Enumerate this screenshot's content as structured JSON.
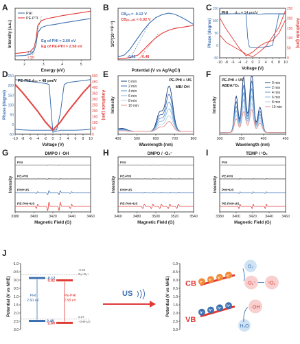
{
  "colors": {
    "blue": "#3b6fb0",
    "red": "#e03a36",
    "gray": "#555555",
    "lightblue": "#7fb3dd"
  },
  "panels": [
    {
      "letter": "A",
      "type": "line",
      "xlabel": "Energy (eV)",
      "ylabel": "Intensity (a.u.)",
      "xticks": [
        "2",
        "3",
        "4",
        "5"
      ],
      "xlim": [
        1.5,
        5.5
      ],
      "ylim": [
        0,
        1
      ],
      "legend": [
        "PHI",
        "PE-PTI"
      ],
      "annotations": [
        "Eɡ of PHI = 2.60 eV",
        "Eɡ of PE-PHI = 2.58 eV",
        "2.60",
        "2.58"
      ],
      "series": [
        {
          "name": "PHI",
          "color": "blue",
          "x": [
            1.5,
            2.0,
            2.3,
            2.5,
            2.6,
            2.7,
            2.9,
            3.2,
            3.6,
            4.0,
            4.5,
            5.0,
            5.5
          ],
          "y": [
            0.08,
            0.09,
            0.11,
            0.18,
            0.3,
            0.55,
            0.66,
            0.7,
            0.72,
            0.75,
            0.78,
            0.81,
            0.84
          ]
        },
        {
          "name": "PE-PTI",
          "color": "red",
          "x": [
            1.5,
            2.0,
            2.3,
            2.5,
            2.6,
            2.7,
            2.9,
            3.2,
            3.6,
            4.0,
            4.5,
            5.0,
            5.5
          ],
          "y": [
            0.13,
            0.15,
            0.17,
            0.25,
            0.4,
            0.7,
            0.8,
            0.84,
            0.87,
            0.9,
            0.93,
            0.96,
            0.99
          ]
        }
      ]
    },
    {
      "letter": "B",
      "type": "line",
      "xlabel": "Potential (V vs Ag/AgCl)",
      "ylabel": "1/C²(10⁻¹²F⁻²)",
      "xticks": [],
      "xlim": [
        -0.8,
        0.4
      ],
      "ylim": [
        0,
        1
      ],
      "annotations": [
        "CBₚₕᵢ = -0.12 V",
        "CBₚₑ₋ₚₕᵢ = 0.02 V",
        "-0.62",
        "-0.48"
      ],
      "series": [
        {
          "name": "PHI",
          "color": "blue",
          "x": [
            -0.8,
            -0.7,
            -0.62,
            -0.5,
            -0.4,
            -0.3,
            -0.2,
            -0.1,
            0.0,
            0.1,
            0.2,
            0.3,
            0.4
          ],
          "y": [
            0.06,
            0.1,
            0.2,
            0.42,
            0.6,
            0.75,
            0.86,
            0.92,
            0.95,
            0.93,
            0.87,
            0.8,
            0.72
          ]
        },
        {
          "name": "PE-PHI",
          "color": "red",
          "x": [
            -0.8,
            -0.7,
            -0.6,
            -0.48,
            -0.4,
            -0.3,
            -0.2,
            -0.1,
            0.0,
            0.1,
            0.2,
            0.3,
            0.4
          ],
          "y": [
            0.02,
            0.03,
            0.05,
            0.1,
            0.2,
            0.33,
            0.45,
            0.54,
            0.6,
            0.64,
            0.66,
            0.68,
            0.7
          ]
        }
      ]
    },
    {
      "letter": "C",
      "type": "line",
      "xlabel": "Voltage (V)",
      "ylabel": "Phase (degree)",
      "y2label": "Amplitude (pm)",
      "xticks": [
        "-10",
        "-8",
        "-6",
        "-4",
        "-2",
        "0",
        "2",
        "4",
        "6",
        "8",
        "10"
      ],
      "xlim": [
        -10,
        10
      ],
      "yticks": [
        "-50",
        "0",
        "50",
        "100",
        "150"
      ],
      "y2ticks": [
        "0",
        "50",
        "100",
        "150",
        "200",
        "250"
      ],
      "annotations": [
        "PHI",
        "d₃₃ = 14 pm/V"
      ],
      "series": [
        {
          "name": "Phase",
          "color": "blue",
          "x": [
            -10,
            -6,
            -3,
            -2,
            -1.5,
            -1,
            0,
            2,
            4,
            6,
            8,
            10
          ],
          "y": [
            150,
            150,
            150,
            150,
            40,
            0,
            -5,
            -3,
            0,
            5,
            148,
            150
          ]
        },
        {
          "name": "Phase return",
          "color": "blue",
          "x": [
            -10,
            -8,
            -6,
            -4,
            -2,
            0,
            0.5,
            1,
            2,
            4,
            6,
            10
          ],
          "y": [
            148,
            149,
            150,
            150,
            150,
            150,
            150,
            150,
            148,
            150,
            150,
            150
          ]
        },
        {
          "name": "Amplitude",
          "color": "red",
          "x": [
            -10,
            -8,
            -6,
            -4,
            -2,
            0,
            2,
            4,
            6,
            8,
            10
          ],
          "y": [
            120,
            80,
            60,
            40,
            20,
            5,
            30,
            60,
            110,
            160,
            250
          ]
        },
        {
          "name": "Amplitude return",
          "color": "red",
          "x": [
            -10,
            -8,
            -6,
            -4,
            -2,
            0,
            2,
            4,
            6,
            8,
            10
          ],
          "y": [
            210,
            150,
            100,
            50,
            10,
            30,
            60,
            80,
            90,
            130,
            200
          ]
        }
      ]
    },
    {
      "letter": "D",
      "type": "line",
      "xlabel": "Voltage (V)",
      "ylabel": "Phase (degree)",
      "y2label": "Amplitude (pm)",
      "xticks": [
        "-10",
        "-8",
        "-6",
        "-4",
        "-2",
        "0",
        "2",
        "4",
        "6",
        "8",
        "10"
      ],
      "xlim": [
        -10,
        10
      ],
      "yticks": [
        "-50",
        "0",
        "50",
        "100",
        "150",
        "200",
        "250"
      ],
      "y2ticks": [
        "0",
        "50",
        "100",
        "150",
        "200",
        "250",
        "300",
        "350",
        "400",
        "450",
        "500"
      ],
      "annotations": [
        "PE-PHI d₃₃ = 48 pm/V"
      ],
      "series": [
        {
          "name": "Phase",
          "color": "blue",
          "x": [
            -10,
            -8,
            -6,
            -4,
            -2,
            -1,
            0,
            1,
            2,
            4,
            6,
            8,
            10
          ],
          "y": [
            230,
            225,
            220,
            215,
            210,
            205,
            -40,
            -35,
            -30,
            -30,
            -30,
            -28,
            -25
          ]
        },
        {
          "name": "Phase return",
          "color": "blue",
          "x": [
            -10,
            -8,
            -6,
            -4,
            -2,
            0,
            1,
            2,
            3,
            4,
            6,
            8,
            10
          ],
          "y": [
            -25,
            -28,
            -30,
            -30,
            -30,
            -30,
            -28,
            60,
            205,
            215,
            220,
            225,
            230
          ]
        },
        {
          "name": "Amplitude",
          "color": "red",
          "x": [
            -10,
            -8,
            -6,
            -4,
            -2,
            0,
            2,
            4,
            6,
            8,
            10
          ],
          "y": [
            430,
            360,
            280,
            200,
            110,
            40,
            110,
            200,
            280,
            360,
            430
          ]
        },
        {
          "name": "Amplitude return",
          "color": "red",
          "x": [
            -10,
            -8,
            -6,
            -4,
            -2,
            0,
            2,
            4,
            6,
            8,
            10
          ],
          "y": [
            420,
            350,
            270,
            190,
            100,
            30,
            100,
            190,
            270,
            350,
            420
          ]
        }
      ]
    },
    {
      "letter": "E",
      "type": "line",
      "xlabel": "Wavelength (nm)",
      "ylabel": "Intensity",
      "xticks": [
        "400",
        "500",
        "600",
        "700",
        "800"
      ],
      "xlim": [
        380,
        800
      ],
      "ylim": [
        0,
        1
      ],
      "annotations": [
        "PE-PHI + US",
        "MB/ OH"
      ],
      "legend": [
        "0 min",
        "2 min",
        "4 min",
        "6 min",
        "8 min",
        "10 min"
      ],
      "peak_x": 664,
      "peak_heights": [
        1.0,
        0.82,
        0.65,
        0.5,
        0.35,
        0.22
      ]
    },
    {
      "letter": "F",
      "type": "line",
      "xlabel": "Wavelength (nm)",
      "ylabel": "Intensity",
      "xticks": [
        "300",
        "350",
        "400",
        "450"
      ],
      "xlim": [
        300,
        460
      ],
      "ylim": [
        0,
        1
      ],
      "annotations": [
        "PE-PHI + US",
        "ABDA/¹O₂"
      ],
      "legend": [
        "0 min",
        "2 min",
        "4 min",
        "6 min",
        "8 min",
        "10 min"
      ],
      "peak_x": [
        340,
        358,
        378,
        398
      ],
      "peak_heights": [
        1.0,
        0.85,
        0.72,
        0.6,
        0.48,
        0.38
      ]
    },
    {
      "letter": "G",
      "type": "line",
      "xlabel": "Magnetic Field (G)",
      "ylabel": "Intensity",
      "xticks": [
        "3380",
        "3400",
        "3420",
        "3440",
        "3460"
      ],
      "xlim": [
        3370,
        3470
      ],
      "annotations": [
        "DMPO / ·OH"
      ],
      "legend": [
        "PHI",
        "PE-PHI",
        "PHI+US",
        "PE-PHI+US"
      ],
      "line_positions": [
        3399,
        3414,
        3429,
        3444
      ],
      "amplitudes": [
        0.03,
        0.05,
        0.45,
        1.0
      ]
    },
    {
      "letter": "H",
      "type": "line",
      "xlabel": "Magnetic Field (G)",
      "ylabel": "Intensity",
      "xticks": [
        "3460",
        "3480",
        "3500",
        "3520",
        "3540"
      ],
      "xlim": [
        3460,
        3540
      ],
      "annotations": [
        "DMPO / ·O₂⁻"
      ],
      "legend": [
        "PHI",
        "PE-PHI",
        "PHI+US",
        "PE-PHI+US"
      ],
      "line_positions": [
        3487,
        3496,
        3505,
        3514,
        3523
      ],
      "amplitudes": [
        0.03,
        0.04,
        0.12,
        1.0
      ]
    },
    {
      "letter": "I",
      "type": "line",
      "xlabel": "Magnetic Field (G)",
      "ylabel": "Intensity",
      "xticks": [
        "3380",
        "3400",
        "3420",
        "3440",
        "3460"
      ],
      "xlim": [
        3370,
        3470
      ],
      "annotations": [
        "TEMP / ¹O₂"
      ],
      "legend": [
        "PHI",
        "PE-PHI",
        "PHI+US",
        "PE-PHI+US"
      ],
      "line_positions": [
        3400,
        3420,
        3440
      ],
      "amplitudes": [
        0.05,
        0.08,
        0.4,
        1.0
      ]
    },
    {
      "letter": "J",
      "type": "diagram",
      "ylabel": "Potential (V vs NHE)",
      "yticks": [
        "-1.0",
        "-0.5",
        "0.0",
        "0.5",
        "1.0",
        "1.5",
        "2.0",
        "2.5",
        "3.0"
      ],
      "ylim": [
        -1,
        3
      ],
      "bands": [
        {
          "name": "PHI",
          "label": "PHI",
          "gap": "2.60 eV",
          "cb": -0.12,
          "vb": 2.48,
          "color": "blue",
          "cb_label": "-0.12",
          "vb_label": "2.48"
        },
        {
          "name": "PE-PHI",
          "label": "PE-PHI",
          "gap": "2.58 eV",
          "cb": 0.02,
          "vb": 2.6,
          "color": "red",
          "cb_label": "0.02",
          "vb_label": "2.60"
        }
      ],
      "refs": [
        {
          "value": -0.33,
          "label": "-0.33",
          "species": "O₂/·O₂⁻"
        },
        {
          "value": 2.37,
          "label": "2.37",
          "species": "·OH/H₂O"
        }
      ],
      "us_label": "US",
      "cb_text": "CB",
      "vb_text": "VB",
      "electron": "e⁻",
      "hole": "h⁺",
      "species": [
        "O₂",
        "·O₂⁻",
        "¹O₂",
        "·OH",
        "H₂O"
      ]
    }
  ],
  "chart_data": [
    {
      "type": "line",
      "title": "",
      "xlabel": "Energy (eV)",
      "ylabel": "Intensity (a.u.)",
      "series": [
        {
          "name": "PHI"
        },
        {
          "name": "PE-PTI"
        }
      ],
      "annotations": [
        "Eɡ of PHI = 2.60 eV",
        "Eɡ of PE-PHI = 2.58 eV"
      ]
    },
    {
      "type": "line",
      "xlabel": "Potential (V vs Ag/AgCl)",
      "ylabel": "1/C²(10⁻¹²F⁻²)",
      "annotations": [
        "CBₚₕᵢ = -0.12 V",
        "CBₚₑ₋ₚₕᵢ = 0.02 V"
      ]
    },
    {
      "type": "line",
      "xlabel": "Voltage (V)",
      "ylabel": "Phase (degree)",
      "annotations": [
        "PHI",
        "d₃₃ = 14 pm/V"
      ]
    },
    {
      "type": "line",
      "xlabel": "Voltage (V)",
      "ylabel": "Phase (degree)",
      "annotations": [
        "PE-PHI d₃₃ = 48 pm/V"
      ]
    },
    {
      "type": "line",
      "xlabel": "Wavelength (nm)",
      "ylabel": "Intensity",
      "annotations": [
        "PE-PHI + US",
        "MB/ OH"
      ]
    },
    {
      "type": "line",
      "xlabel": "Wavelength (nm)",
      "ylabel": "Intensity",
      "annotations": [
        "PE-PHI + US",
        "ABDA/¹O₂"
      ]
    },
    {
      "type": "line",
      "xlabel": "Magnetic Field (G)",
      "ylabel": "Intensity",
      "annotations": [
        "DMPO / ·OH"
      ]
    },
    {
      "type": "line",
      "xlabel": "Magnetic Field (G)",
      "ylabel": "Intensity",
      "annotations": [
        "DMPO / ·O₂⁻"
      ]
    },
    {
      "type": "line",
      "xlabel": "Magnetic Field (G)",
      "ylabel": "Intensity",
      "annotations": [
        "TEMP / ¹O₂"
      ]
    }
  ]
}
